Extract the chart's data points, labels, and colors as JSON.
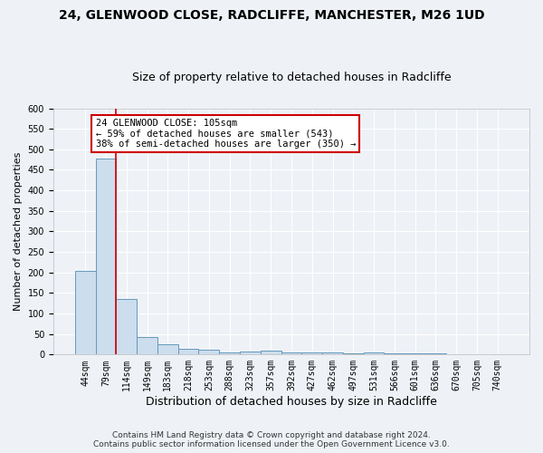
{
  "title1": "24, GLENWOOD CLOSE, RADCLIFFE, MANCHESTER, M26 1UD",
  "title2": "Size of property relative to detached houses in Radcliffe",
  "xlabel": "Distribution of detached houses by size in Radcliffe",
  "ylabel": "Number of detached properties",
  "bar_values": [
    203,
    478,
    135,
    42,
    24,
    14,
    12,
    5,
    8,
    10,
    5,
    5,
    5,
    2,
    5,
    2,
    3,
    2,
    1,
    1,
    1
  ],
  "bar_labels": [
    "44sqm",
    "79sqm",
    "114sqm",
    "149sqm",
    "183sqm",
    "218sqm",
    "253sqm",
    "288sqm",
    "323sqm",
    "357sqm",
    "392sqm",
    "427sqm",
    "462sqm",
    "497sqm",
    "531sqm",
    "566sqm",
    "601sqm",
    "636sqm",
    "670sqm",
    "705sqm",
    "740sqm"
  ],
  "bar_color": "#ccdded",
  "bar_edge_color": "#6699bb",
  "bar_edge_width": 0.7,
  "red_line_index": 2,
  "red_line_color": "#cc0000",
  "ylim": [
    0,
    600
  ],
  "yticks": [
    0,
    50,
    100,
    150,
    200,
    250,
    300,
    350,
    400,
    450,
    500,
    550,
    600
  ],
  "annotation_line1": "24 GLENWOOD CLOSE: 105sqm",
  "annotation_line2": "← 59% of detached houses are smaller (543)",
  "annotation_line3": "38% of semi-detached houses are larger (350) →",
  "annotation_box_color": "#ffffff",
  "annotation_border_color": "#cc0000",
  "footer1": "Contains HM Land Registry data © Crown copyright and database right 2024.",
  "footer2": "Contains public sector information licensed under the Open Government Licence v3.0.",
  "bg_color": "#eef2f7",
  "grid_color": "#ffffff",
  "title1_fontsize": 10,
  "title2_fontsize": 9,
  "ylabel_fontsize": 8,
  "xlabel_fontsize": 9,
  "tick_fontsize": 7,
  "footer_fontsize": 6.5
}
